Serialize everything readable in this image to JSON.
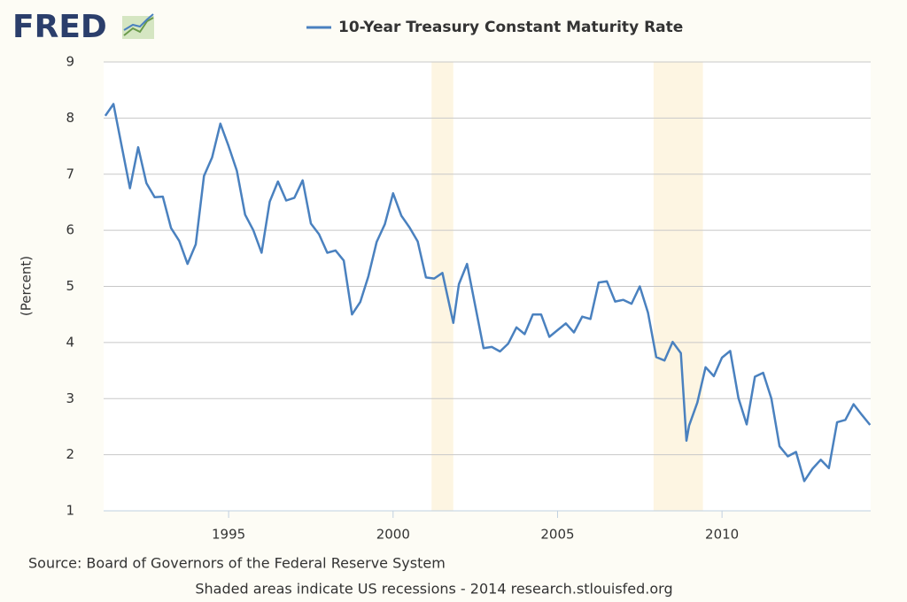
{
  "logo": "FRED",
  "chart_data": {
    "type": "line",
    "legend_title": "10-Year Treasury Constant Maturity Rate",
    "y_label": "(Percent)",
    "source": "Source: Board of Governors of the Federal Reserve System",
    "note": "Shaded areas indicate US recessions - 2014 research.stlouisfed.org",
    "x": [
      1991.25,
      1991.5,
      1991.75,
      1992.0,
      1992.25,
      1992.5,
      1992.75,
      1993.0,
      1993.25,
      1993.5,
      1993.75,
      1994.0,
      1994.25,
      1994.5,
      1994.75,
      1995.0,
      1995.25,
      1995.5,
      1995.75,
      1996.0,
      1996.25,
      1996.5,
      1996.75,
      1997.0,
      1997.25,
      1997.5,
      1997.75,
      1998.0,
      1998.25,
      1998.5,
      1998.75,
      1999.0,
      1999.25,
      1999.5,
      1999.75,
      2000.0,
      2000.25,
      2000.5,
      2000.75,
      2001.0,
      2001.25,
      2001.5,
      2001.83,
      2002.0,
      2002.25,
      2002.5,
      2002.75,
      2003.0,
      2003.25,
      2003.5,
      2003.75,
      2004.0,
      2004.25,
      2004.5,
      2004.75,
      2005.0,
      2005.25,
      2005.5,
      2005.75,
      2006.0,
      2006.25,
      2006.5,
      2006.75,
      2007.0,
      2007.25,
      2007.5,
      2007.75,
      2008.0,
      2008.25,
      2008.5,
      2008.75,
      2008.92,
      2009.0,
      2009.25,
      2009.5,
      2009.75,
      2010.0,
      2010.25,
      2010.5,
      2010.75,
      2011.0,
      2011.25,
      2011.5,
      2011.75,
      2012.0,
      2012.25,
      2012.5,
      2012.75,
      2013.0,
      2013.25,
      2013.5,
      2013.75,
      2014.0,
      2014.25,
      2014.5
    ],
    "series": [
      {
        "name": "10-Year Treasury Constant Maturity Rate",
        "color": "#4a81bf",
        "values": [
          8.04,
          8.25,
          7.5,
          6.75,
          7.48,
          6.84,
          6.59,
          6.6,
          6.04,
          5.81,
          5.4,
          5.75,
          6.97,
          7.3,
          7.9,
          7.5,
          7.06,
          6.28,
          6.0,
          5.6,
          6.51,
          6.87,
          6.53,
          6.58,
          6.89,
          6.12,
          5.93,
          5.6,
          5.64,
          5.46,
          4.5,
          4.72,
          5.18,
          5.79,
          6.11,
          6.66,
          6.26,
          6.05,
          5.8,
          5.16,
          5.14,
          5.24,
          4.35,
          5.04,
          5.4,
          4.65,
          3.9,
          3.92,
          3.84,
          3.98,
          4.27,
          4.15,
          4.5,
          4.5,
          4.1,
          4.22,
          4.34,
          4.18,
          4.46,
          4.42,
          5.07,
          5.09,
          4.73,
          4.76,
          4.69,
          5.0,
          4.53,
          3.74,
          3.68,
          4.01,
          3.81,
          2.25,
          2.52,
          2.93,
          3.56,
          3.4,
          3.73,
          3.85,
          3.01,
          2.54,
          3.39,
          3.46,
          3.0,
          2.15,
          1.97,
          2.05,
          1.53,
          1.75,
          1.91,
          1.76,
          2.58,
          2.62,
          2.9,
          2.71,
          2.53
        ]
      }
    ],
    "recessions": [
      [
        2001.17,
        2001.83
      ],
      [
        2007.92,
        2009.42
      ]
    ],
    "xlim": [
      1991.2,
      2014.52
    ],
    "xticks": [
      1995,
      2000,
      2005,
      2010
    ],
    "ylim": [
      1,
      9
    ],
    "yticks": [
      1,
      2,
      3,
      4,
      5,
      6,
      7,
      8,
      9
    ],
    "grid": true
  }
}
